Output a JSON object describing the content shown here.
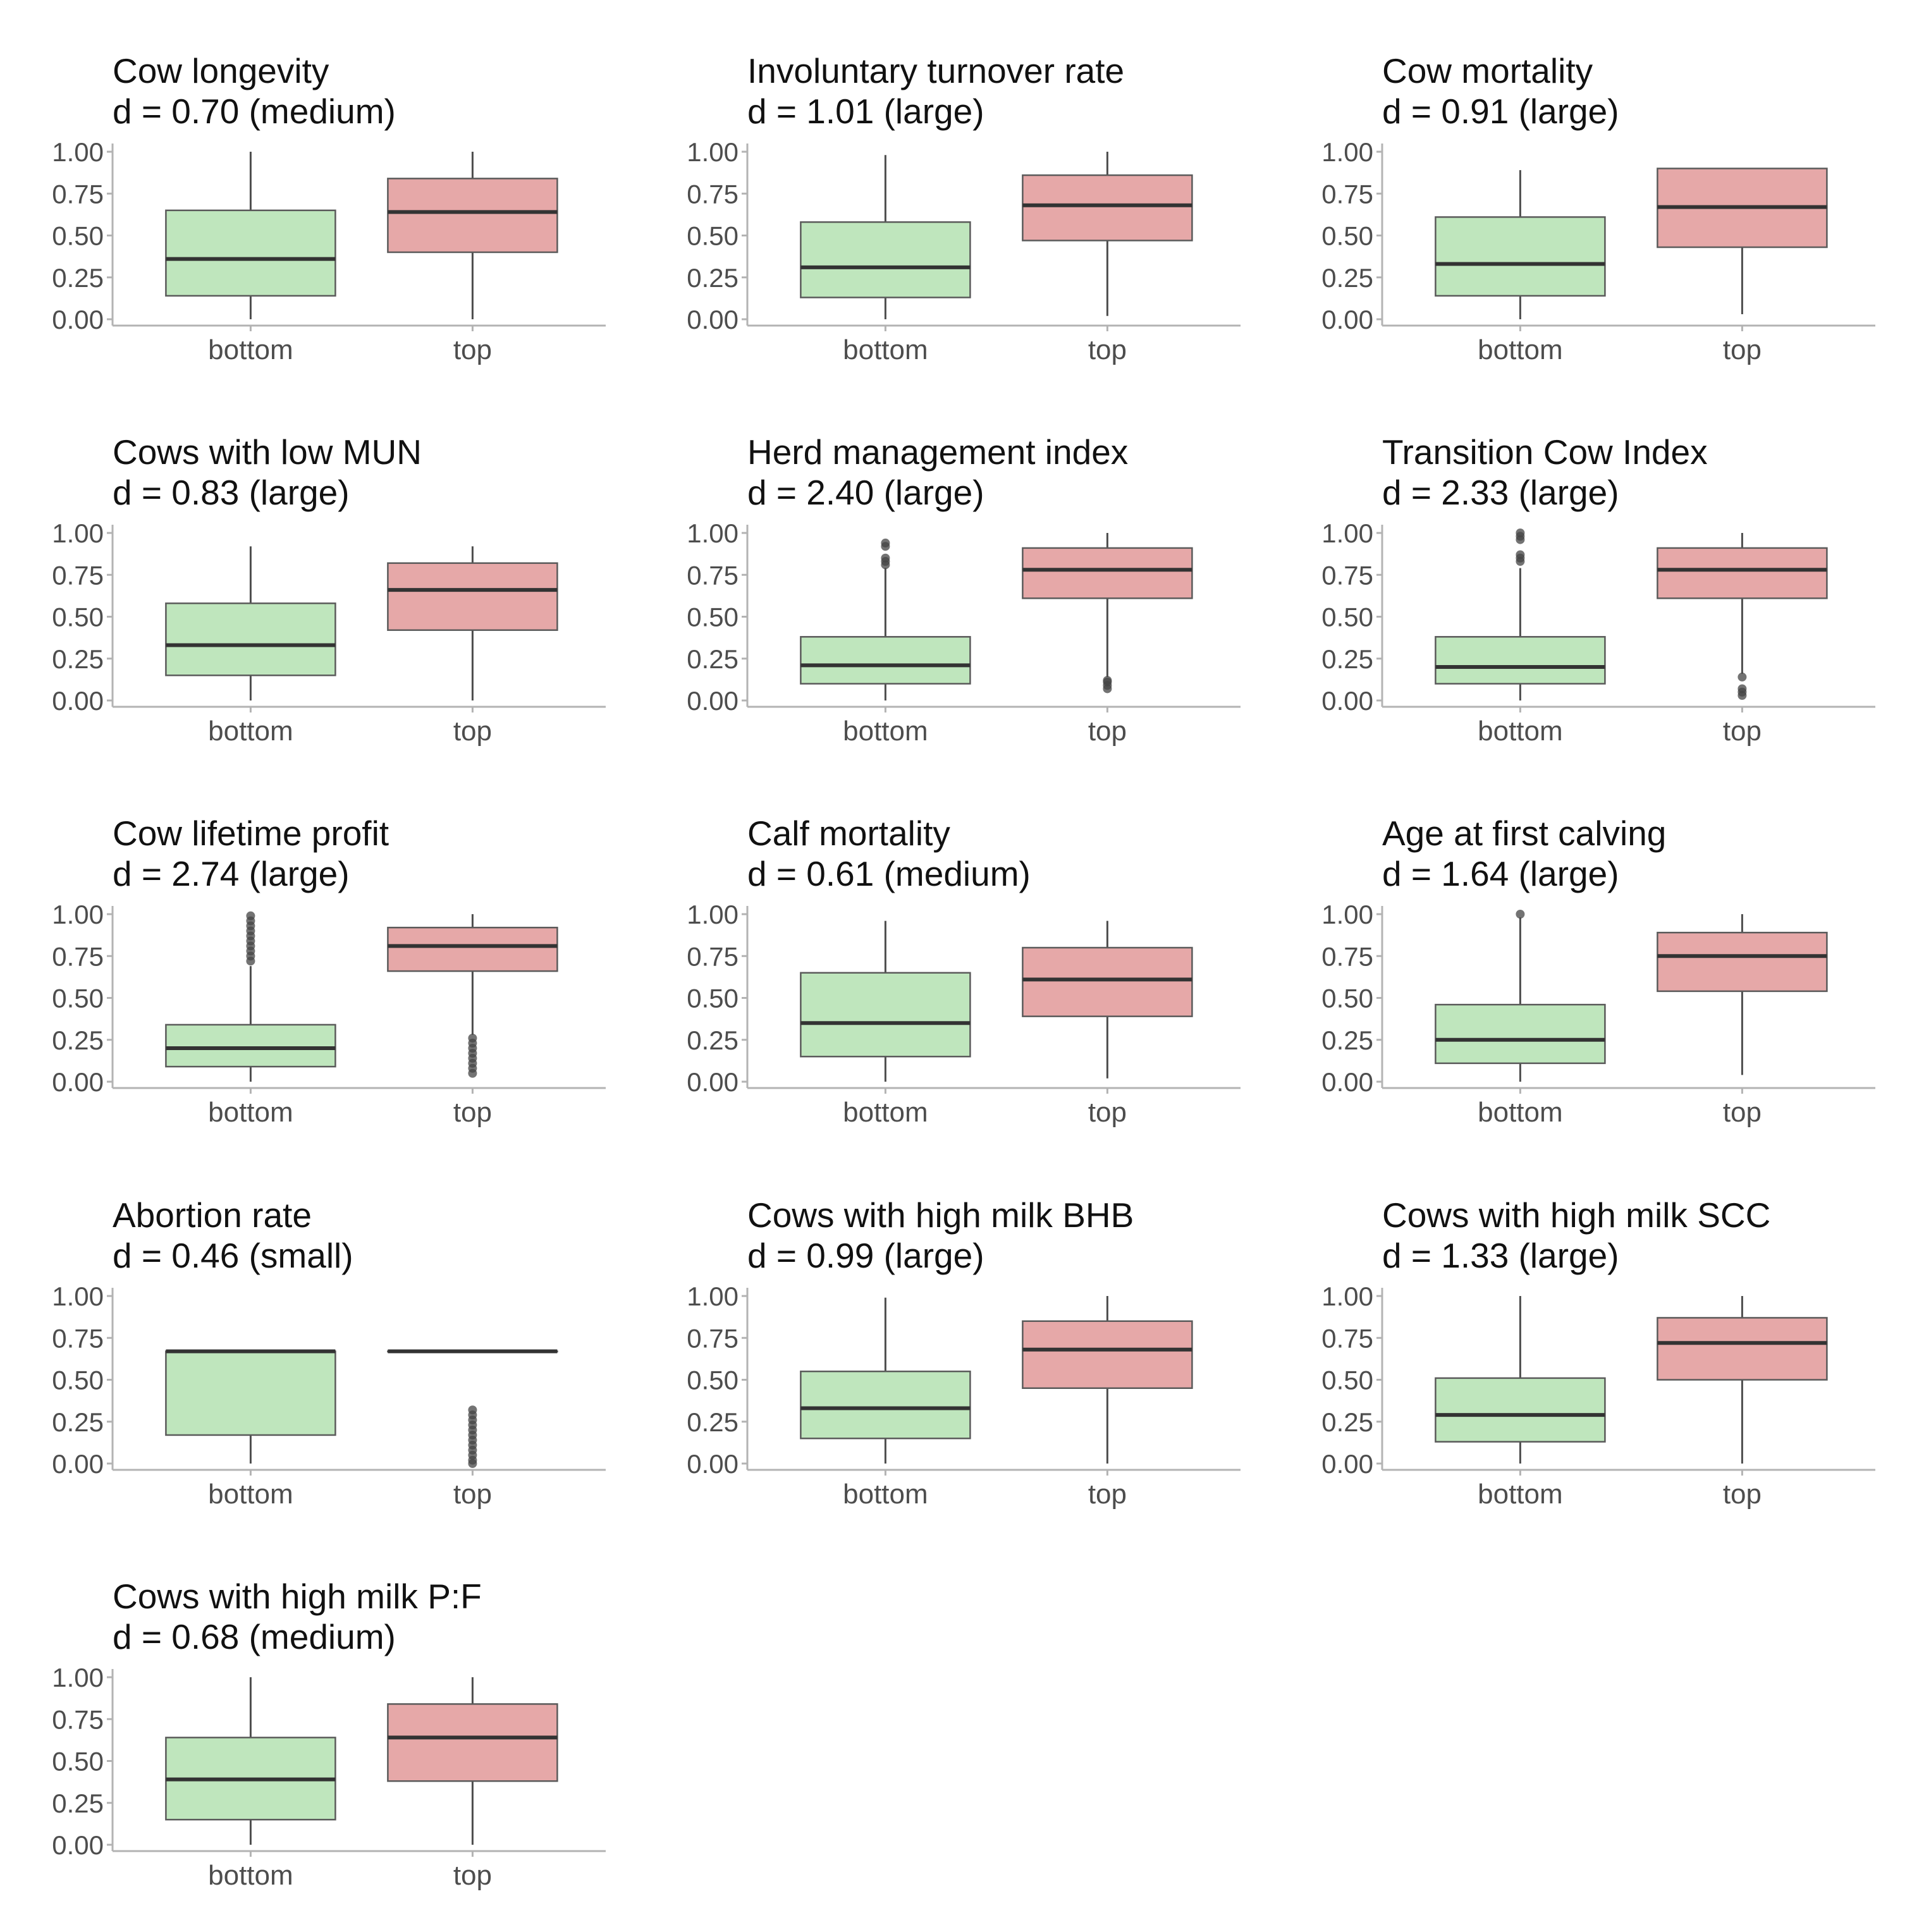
{
  "colors": {
    "bottom_fill": "#bfe6bd",
    "top_fill": "#e6a8a8",
    "box_stroke": "#5a5a5a",
    "median": "#333333",
    "whisker": "#4d4d4d",
    "outlier": "#444444",
    "axis": "#b3b3b3"
  },
  "chart_data": [
    {
      "type": "box",
      "title": "Cow longevity",
      "effect": "d = 0.70 (medium)",
      "categories": [
        "bottom",
        "top"
      ],
      "ylim": [
        0,
        1
      ],
      "yticks": [
        "0.00",
        "0.25",
        "0.50",
        "0.75",
        "1.00"
      ],
      "boxes": [
        {
          "group": "bottom",
          "min": 0.0,
          "q1": 0.14,
          "median": 0.36,
          "q3": 0.65,
          "max": 1.0,
          "outliers": []
        },
        {
          "group": "top",
          "min": 0.0,
          "q1": 0.4,
          "median": 0.64,
          "q3": 0.84,
          "max": 1.0,
          "outliers": []
        }
      ]
    },
    {
      "type": "box",
      "title": "Involuntary turnover rate",
      "effect": "d = 1.01 (large)",
      "categories": [
        "bottom",
        "top"
      ],
      "ylim": [
        0,
        1
      ],
      "yticks": [
        "0.00",
        "0.25",
        "0.50",
        "0.75",
        "1.00"
      ],
      "boxes": [
        {
          "group": "bottom",
          "min": 0.0,
          "q1": 0.13,
          "median": 0.31,
          "q3": 0.58,
          "max": 0.98,
          "outliers": []
        },
        {
          "group": "top",
          "min": 0.02,
          "q1": 0.47,
          "median": 0.68,
          "q3": 0.86,
          "max": 1.0,
          "outliers": []
        }
      ]
    },
    {
      "type": "box",
      "title": "Cow mortality",
      "effect": "d = 0.91 (large)",
      "categories": [
        "bottom",
        "top"
      ],
      "ylim": [
        0,
        1
      ],
      "yticks": [
        "0.00",
        "0.25",
        "0.50",
        "0.75",
        "1.00"
      ],
      "boxes": [
        {
          "group": "bottom",
          "min": 0.0,
          "q1": 0.14,
          "median": 0.33,
          "q3": 0.61,
          "max": 0.89,
          "outliers": []
        },
        {
          "group": "top",
          "min": 0.03,
          "q1": 0.43,
          "median": 0.67,
          "q3": 0.9,
          "max": 0.9,
          "outliers": []
        }
      ]
    },
    {
      "type": "box",
      "title": "Cows with low MUN",
      "effect": "d = 0.83 (large)",
      "categories": [
        "bottom",
        "top"
      ],
      "ylim": [
        0,
        1
      ],
      "yticks": [
        "0.00",
        "0.25",
        "0.50",
        "0.75",
        "1.00"
      ],
      "boxes": [
        {
          "group": "bottom",
          "min": 0.0,
          "q1": 0.15,
          "median": 0.33,
          "q3": 0.58,
          "max": 0.92,
          "outliers": []
        },
        {
          "group": "top",
          "min": 0.0,
          "q1": 0.42,
          "median": 0.66,
          "q3": 0.82,
          "max": 0.92,
          "outliers": []
        }
      ]
    },
    {
      "type": "box",
      "title": "Herd management index",
      "effect": "d = 2.40 (large)",
      "categories": [
        "bottom",
        "top"
      ],
      "ylim": [
        0,
        1
      ],
      "yticks": [
        "0.00",
        "0.25",
        "0.50",
        "0.75",
        "1.00"
      ],
      "boxes": [
        {
          "group": "bottom",
          "min": 0.0,
          "q1": 0.1,
          "median": 0.21,
          "q3": 0.38,
          "max": 0.79,
          "outliers": [
            0.81,
            0.83,
            0.85,
            0.92,
            0.94
          ]
        },
        {
          "group": "top",
          "min": 0.14,
          "q1": 0.61,
          "median": 0.78,
          "q3": 0.91,
          "max": 1.0,
          "outliers": [
            0.07,
            0.09,
            0.11,
            0.12
          ]
        }
      ]
    },
    {
      "type": "box",
      "title": "Transition Cow Index",
      "effect": "d = 2.33 (large)",
      "categories": [
        "bottom",
        "top"
      ],
      "ylim": [
        0,
        1
      ],
      "yticks": [
        "0.00",
        "0.25",
        "0.50",
        "0.75",
        "1.00"
      ],
      "boxes": [
        {
          "group": "bottom",
          "min": 0.0,
          "q1": 0.1,
          "median": 0.2,
          "q3": 0.38,
          "max": 0.79,
          "outliers": [
            0.83,
            0.85,
            0.87,
            0.96,
            0.98,
            1.0
          ]
        },
        {
          "group": "top",
          "min": 0.16,
          "q1": 0.61,
          "median": 0.78,
          "q3": 0.91,
          "max": 1.0,
          "outliers": [
            0.03,
            0.05,
            0.07,
            0.14
          ]
        }
      ]
    },
    {
      "type": "box",
      "title": "Cow lifetime profit",
      "effect": "d = 2.74 (large)",
      "categories": [
        "bottom",
        "top"
      ],
      "ylim": [
        0,
        1
      ],
      "yticks": [
        "0.00",
        "0.25",
        "0.50",
        "0.75",
        "1.00"
      ],
      "boxes": [
        {
          "group": "bottom",
          "min": 0.0,
          "q1": 0.09,
          "median": 0.2,
          "q3": 0.34,
          "max": 0.69,
          "outliers": [
            0.72,
            0.75,
            0.78,
            0.81,
            0.84,
            0.87,
            0.9,
            0.93,
            0.96,
            0.99
          ]
        },
        {
          "group": "top",
          "min": 0.28,
          "q1": 0.66,
          "median": 0.81,
          "q3": 0.92,
          "max": 1.0,
          "outliers": [
            0.05,
            0.08,
            0.11,
            0.14,
            0.17,
            0.2,
            0.23,
            0.26
          ]
        }
      ]
    },
    {
      "type": "box",
      "title": "Calf mortality",
      "effect": "d = 0.61 (medium)",
      "categories": [
        "bottom",
        "top"
      ],
      "ylim": [
        0,
        1
      ],
      "yticks": [
        "0.00",
        "0.25",
        "0.50",
        "0.75",
        "1.00"
      ],
      "boxes": [
        {
          "group": "bottom",
          "min": 0.0,
          "q1": 0.15,
          "median": 0.35,
          "q3": 0.65,
          "max": 0.96,
          "outliers": []
        },
        {
          "group": "top",
          "min": 0.02,
          "q1": 0.39,
          "median": 0.61,
          "q3": 0.8,
          "max": 0.96,
          "outliers": []
        }
      ]
    },
    {
      "type": "box",
      "title": "Age at first calving",
      "effect": "d = 1.64 (large)",
      "categories": [
        "bottom",
        "top"
      ],
      "ylim": [
        0,
        1
      ],
      "yticks": [
        "0.00",
        "0.25",
        "0.50",
        "0.75",
        "1.00"
      ],
      "boxes": [
        {
          "group": "bottom",
          "min": 0.0,
          "q1": 0.11,
          "median": 0.25,
          "q3": 0.46,
          "max": 0.98,
          "outliers": [
            1.0
          ]
        },
        {
          "group": "top",
          "min": 0.04,
          "q1": 0.54,
          "median": 0.75,
          "q3": 0.89,
          "max": 1.0,
          "outliers": []
        }
      ]
    },
    {
      "type": "box",
      "title": "Abortion rate",
      "effect": "d = 0.46 (small)",
      "categories": [
        "bottom",
        "top"
      ],
      "ylim": [
        0,
        1
      ],
      "yticks": [
        "0.00",
        "0.25",
        "0.50",
        "0.75",
        "1.00"
      ],
      "boxes": [
        {
          "group": "bottom",
          "min": 0.0,
          "q1": 0.17,
          "median": 0.67,
          "q3": 0.67,
          "max": 0.67,
          "outliers": []
        },
        {
          "group": "top",
          "min": 0.67,
          "q1": 0.67,
          "median": 0.67,
          "q3": 0.67,
          "max": 0.67,
          "outliers": [
            0.0,
            0.02,
            0.05,
            0.08,
            0.11,
            0.14,
            0.17,
            0.2,
            0.23,
            0.26,
            0.29,
            0.32
          ]
        }
      ]
    },
    {
      "type": "box",
      "title": "Cows with high milk BHB",
      "effect": "d = 0.99 (large)",
      "categories": [
        "bottom",
        "top"
      ],
      "ylim": [
        0,
        1
      ],
      "yticks": [
        "0.00",
        "0.25",
        "0.50",
        "0.75",
        "1.00"
      ],
      "boxes": [
        {
          "group": "bottom",
          "min": 0.0,
          "q1": 0.15,
          "median": 0.33,
          "q3": 0.55,
          "max": 0.99,
          "outliers": []
        },
        {
          "group": "top",
          "min": 0.0,
          "q1": 0.45,
          "median": 0.68,
          "q3": 0.85,
          "max": 1.0,
          "outliers": []
        }
      ]
    },
    {
      "type": "box",
      "title": "Cows with high milk SCC",
      "effect": "d = 1.33 (large)",
      "categories": [
        "bottom",
        "top"
      ],
      "ylim": [
        0,
        1
      ],
      "yticks": [
        "0.00",
        "0.25",
        "0.50",
        "0.75",
        "1.00"
      ],
      "boxes": [
        {
          "group": "bottom",
          "min": 0.0,
          "q1": 0.13,
          "median": 0.29,
          "q3": 0.51,
          "max": 1.0,
          "outliers": []
        },
        {
          "group": "top",
          "min": 0.0,
          "q1": 0.5,
          "median": 0.72,
          "q3": 0.87,
          "max": 1.0,
          "outliers": []
        }
      ]
    },
    {
      "type": "box",
      "title": "Cows with high milk P:F",
      "effect": "d = 0.68 (medium)",
      "categories": [
        "bottom",
        "top"
      ],
      "ylim": [
        0,
        1
      ],
      "yticks": [
        "0.00",
        "0.25",
        "0.50",
        "0.75",
        "1.00"
      ],
      "boxes": [
        {
          "group": "bottom",
          "min": 0.0,
          "q1": 0.15,
          "median": 0.39,
          "q3": 0.64,
          "max": 1.0,
          "outliers": []
        },
        {
          "group": "top",
          "min": 0.0,
          "q1": 0.38,
          "median": 0.64,
          "q3": 0.84,
          "max": 1.0,
          "outliers": []
        }
      ]
    }
  ]
}
